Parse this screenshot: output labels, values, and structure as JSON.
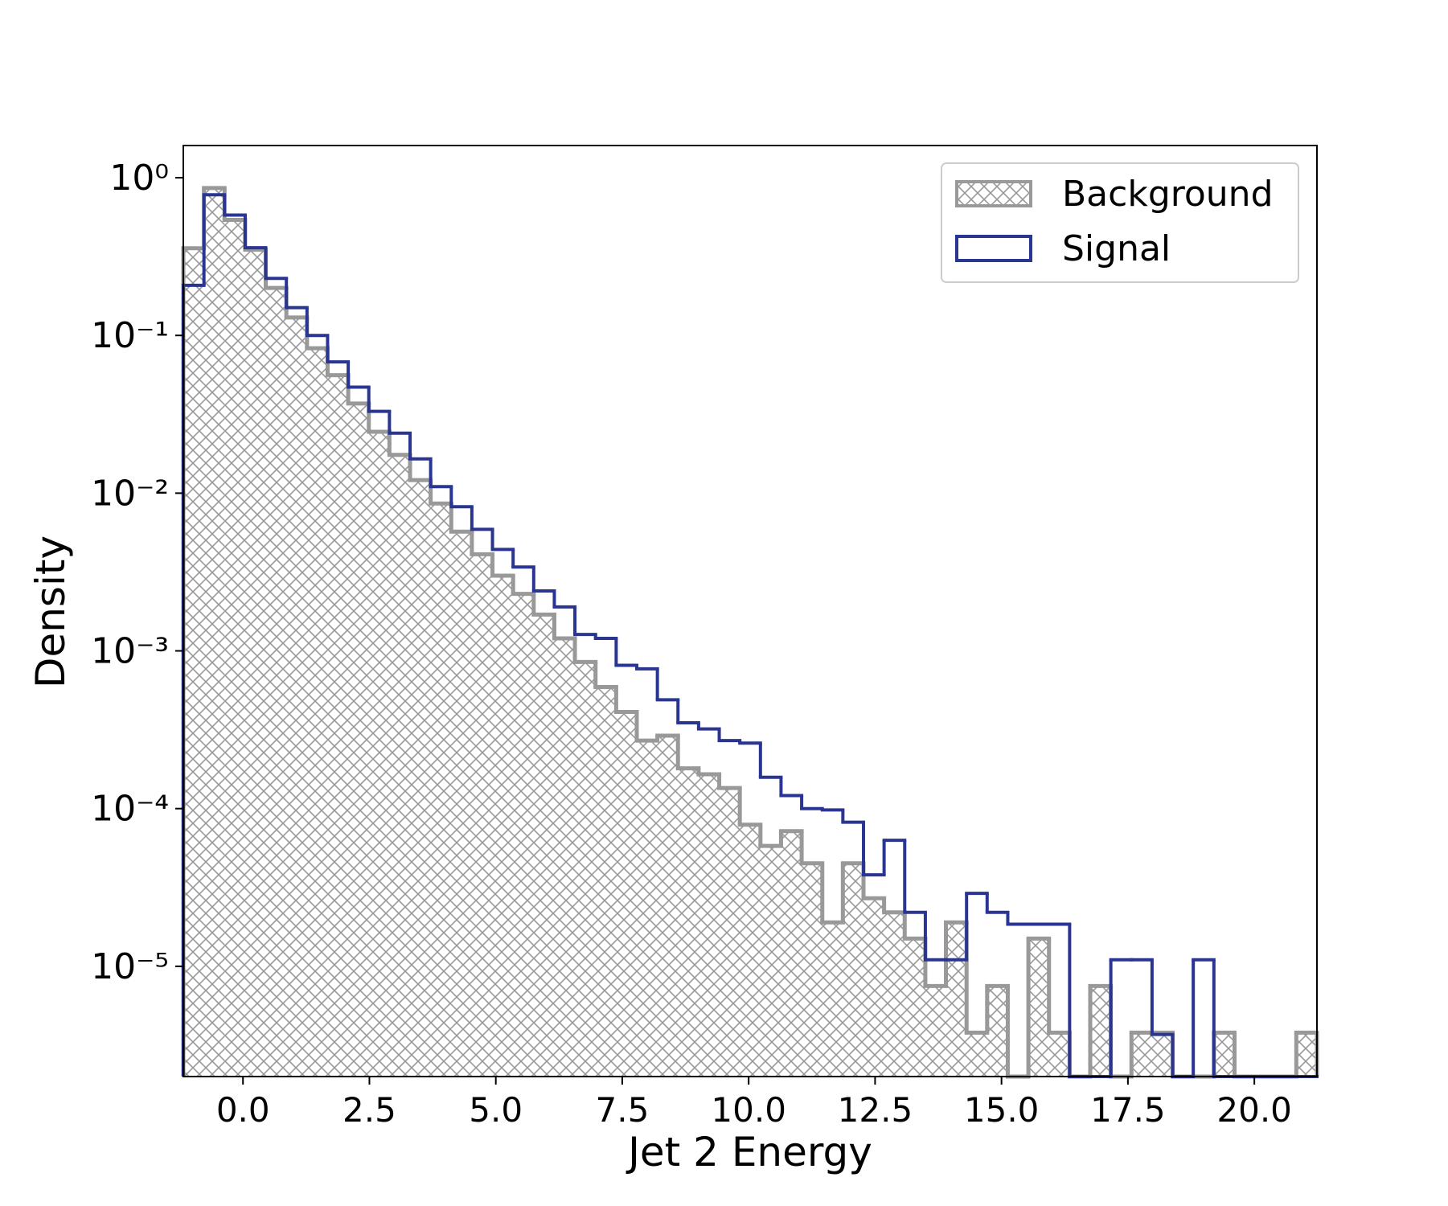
{
  "chart_data": {
    "type": "histogram",
    "xlabel": "Jet 2 Energy",
    "ylabel": "Density",
    "log_y": true,
    "legend_position": "upper right",
    "bins": [
      -1.18,
      -0.772,
      -0.365,
      0.043,
      0.45,
      0.858,
      1.266,
      1.673,
      2.081,
      2.488,
      2.896,
      3.304,
      3.711,
      4.119,
      4.526,
      4.934,
      5.342,
      5.749,
      6.157,
      6.564,
      6.972,
      7.38,
      7.787,
      8.195,
      8.602,
      9.01,
      9.418,
      9.825,
      10.233,
      10.64,
      11.048,
      11.456,
      11.863,
      12.271,
      12.678,
      13.086,
      13.494,
      13.901,
      14.309,
      14.716,
      15.124,
      15.532,
      15.939,
      16.347,
      16.754,
      17.162,
      17.57,
      17.977,
      18.385,
      18.792,
      19.2,
      19.608,
      20.015,
      20.423,
      20.83,
      21.238
    ],
    "series": [
      {
        "name": "Background",
        "color": "#999999",
        "hatch": true,
        "values": [
          0.357,
          0.86,
          0.54,
          0.35,
          0.2,
          0.13,
          0.083,
          0.056,
          0.037,
          0.0245,
          0.0175,
          0.0121,
          0.0086,
          0.0057,
          0.0041,
          0.003,
          0.0023,
          0.0017,
          0.0012,
          0.00085,
          0.00059,
          0.00041,
          0.00027,
          0.00029,
          0.00018,
          0.000165,
          0.000135,
          7.9e-05,
          5.8e-05,
          7.2e-05,
          4.5e-05,
          1.9e-05,
          4.5e-05,
          2.7e-05,
          2.2e-05,
          1.5e-05,
          7.5e-06,
          1.9e-05,
          3.8e-06,
          7.5e-06,
          0,
          1.5e-05,
          3.8e-06,
          0,
          7.5e-06,
          0,
          3.8e-06,
          3.8e-06,
          0,
          0,
          3.8e-06,
          0,
          0,
          0,
          3.8e-06
        ]
      },
      {
        "name": "Signal",
        "color": "#2a3592",
        "hatch": false,
        "values": [
          0.208,
          0.78,
          0.58,
          0.36,
          0.23,
          0.15,
          0.1,
          0.068,
          0.047,
          0.033,
          0.024,
          0.0165,
          0.011,
          0.0082,
          0.0059,
          0.0044,
          0.0034,
          0.0024,
          0.0019,
          0.00127,
          0.0012,
          0.00081,
          0.00077,
          0.00049,
          0.00035,
          0.00032,
          0.00027,
          0.00026,
          0.000158,
          0.000121,
          0.0001,
          9.8e-05,
          8.2e-05,
          3.8e-05,
          6.3e-05,
          2.2e-05,
          1.1e-05,
          1.1e-05,
          2.9e-05,
          2.2e-05,
          1.85e-05,
          1.85e-05,
          1.85e-05,
          0,
          0,
          1.1e-05,
          1.1e-05,
          3.7e-06,
          0,
          1.1e-05,
          0,
          0,
          0,
          0,
          0
        ]
      }
    ],
    "xlim": [
      -1.18,
      21.238
    ],
    "ylim": [
      2e-06,
      1.6
    ],
    "xticks": [
      {
        "value": 0,
        "label": "0.0"
      },
      {
        "value": 2.5,
        "label": "2.5"
      },
      {
        "value": 5,
        "label": "5.0"
      },
      {
        "value": 7.5,
        "label": "7.5"
      },
      {
        "value": 10,
        "label": "10.0"
      },
      {
        "value": 12.5,
        "label": "12.5"
      },
      {
        "value": 15,
        "label": "15.0"
      },
      {
        "value": 17.5,
        "label": "17.5"
      },
      {
        "value": 20,
        "label": "20.0"
      }
    ],
    "yticks": [
      {
        "value": 1,
        "label": "10⁰"
      },
      {
        "value": 0.1,
        "label": "10⁻¹"
      },
      {
        "value": 0.01,
        "label": "10⁻²"
      },
      {
        "value": 0.001,
        "label": "10⁻³"
      },
      {
        "value": 0.0001,
        "label": "10⁻⁴"
      },
      {
        "value": 1e-05,
        "label": "10⁻⁵"
      }
    ]
  }
}
